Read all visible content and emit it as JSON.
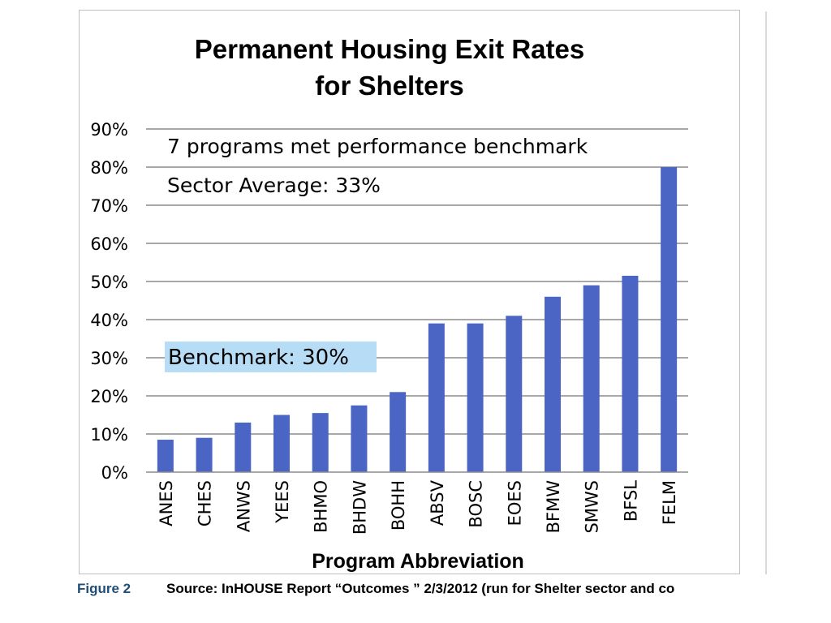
{
  "chart_data": {
    "type": "bar",
    "title_lines": [
      "Permanent Housing Exit Rates",
      "for Shelters"
    ],
    "xlabel": "Program Abbreviation",
    "ylabel": "",
    "ylim": [
      0,
      90
    ],
    "yticks": [
      0,
      10,
      20,
      30,
      40,
      50,
      60,
      70,
      80,
      90
    ],
    "ytick_labels": [
      "0%",
      "10%",
      "20%",
      "30%",
      "40%",
      "50%",
      "60%",
      "70%",
      "80%",
      "90%"
    ],
    "grid": true,
    "categories": [
      "ANES",
      "CHES",
      "ANWS",
      "YEES",
      "BHMO",
      "BHDW",
      "BOHH",
      "ABSV",
      "BOSC",
      "EOES",
      "BFMW",
      "SMWS",
      "BFSL",
      "FELM"
    ],
    "values": [
      8.5,
      9,
      13,
      15,
      15.5,
      17.5,
      21,
      39,
      39,
      41,
      46,
      49,
      51.5,
      80
    ],
    "bar_color": "#4a65c4",
    "annotations": {
      "programs_met": "7 programs met performance benchmark",
      "sector_average": "Sector Average: 33%",
      "benchmark": "Benchmark: 30%"
    },
    "benchmark_highlight_color": "#b7dcf5"
  },
  "caption": {
    "figure": "Figure 2",
    "source": "Source: InHOUSE Report “Outcomes ” 2/3/2012 (run for Shelter sector and co"
  }
}
